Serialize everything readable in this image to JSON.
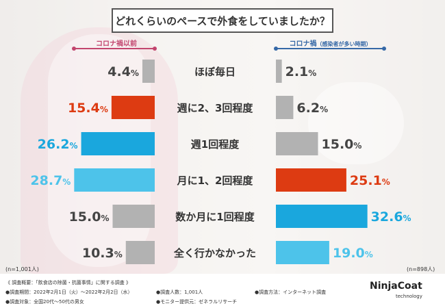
{
  "title": "どれくらいのペースで外食をしていましたか？",
  "left_header": "コロナ禍以前",
  "right_header_main": "コロナ禍",
  "right_header_sub": "（感染者が多い時期）",
  "n_left": "(n=1,001人)",
  "n_right": "(n=898人)",
  "footnotes": {
    "summary": "《 調査概要：「飲食店の除菌・抗菌事情」に関する調査 》",
    "period": "●調査期間：2022年2月1日（火）〜2022年2月2日（水）",
    "count": "●調査人数：1,001人",
    "method": "●調査方法：インターネット調査",
    "target": "●調査対象：全国20代〜50代の男女",
    "provider": "●モニター提供元：ゼネラルリサーチ"
  },
  "logo": {
    "main": "NinjaCoat",
    "sub": "technology"
  },
  "colors": {
    "highlight_red": "#dd3b12",
    "dark_blue": "#1aa7dd",
    "light_blue": "#4dc3ea",
    "gray": "#b2b2b2",
    "left_accent": "#c2456e",
    "right_accent": "#3568a6"
  },
  "chart_data": {
    "type": "bar",
    "title": "どれくらいのペースで外食をしていましたか？",
    "unit": "%",
    "categories": [
      "ほぼ毎日",
      "週に2、3回程度",
      "週1回程度",
      "月に1、2回程度",
      "数か月に1回程度",
      "全く行かなかった"
    ],
    "series": [
      {
        "name": "コロナ禍以前",
        "values": [
          4.4,
          15.4,
          26.2,
          28.7,
          15.0,
          10.3
        ],
        "colors": [
          "#b2b2b2",
          "#dd3b12",
          "#1aa7dd",
          "#4dc3ea",
          "#b2b2b2",
          "#b2b2b2"
        ]
      },
      {
        "name": "コロナ禍（感染者が多い時期）",
        "values": [
          2.1,
          6.2,
          15.0,
          25.1,
          32.6,
          19.0
        ],
        "colors": [
          "#b2b2b2",
          "#b2b2b2",
          "#b2b2b2",
          "#dd3b12",
          "#1aa7dd",
          "#4dc3ea"
        ]
      }
    ],
    "value_label_colors": {
      "left": [
        "#444444",
        "#dd3b12",
        "#1aa7dd",
        "#4dc3ea",
        "#444444",
        "#444444"
      ],
      "right": [
        "#444444",
        "#444444",
        "#444444",
        "#dd3b12",
        "#1aa7dd",
        "#4dc3ea"
      ]
    },
    "legend": "top"
  }
}
